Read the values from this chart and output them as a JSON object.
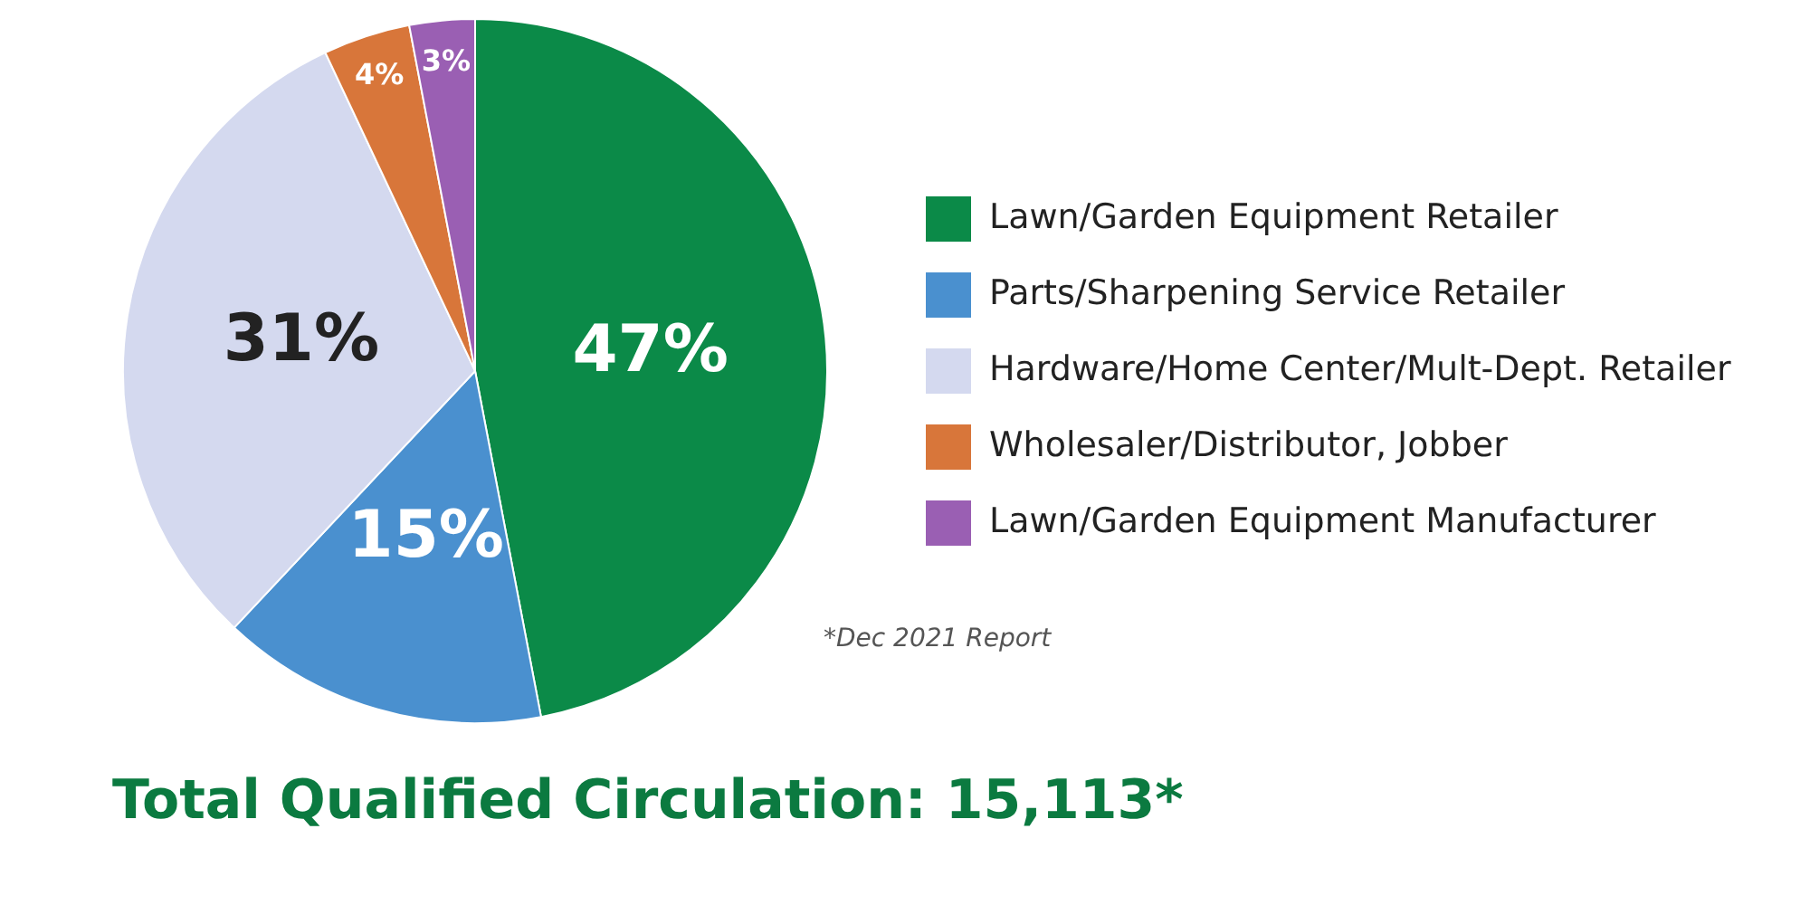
{
  "chart_data": {
    "type": "pie",
    "title": "Total Qualified Circulation: 15,113*",
    "categories": [
      "Lawn/Garden Equipment Retailer",
      "Parts/Sharpening Service Retailer",
      "Hardware/Home Center/Mult-Dept. Retailer",
      "Wholesaler/Distributor, Jobber",
      "Lawn/Garden Equipment Manufacturer"
    ],
    "values": [
      47,
      15,
      31,
      4,
      3
    ],
    "value_labels": [
      "47%",
      "15%",
      "31%",
      "4%",
      "3%"
    ],
    "colors": [
      "#0b8a48",
      "#4a90cf",
      "#d4d9ef",
      "#d8763a",
      "#9a5fb3"
    ],
    "legend": "right",
    "annotations": [
      "*Dec 2021 Report"
    ]
  }
}
